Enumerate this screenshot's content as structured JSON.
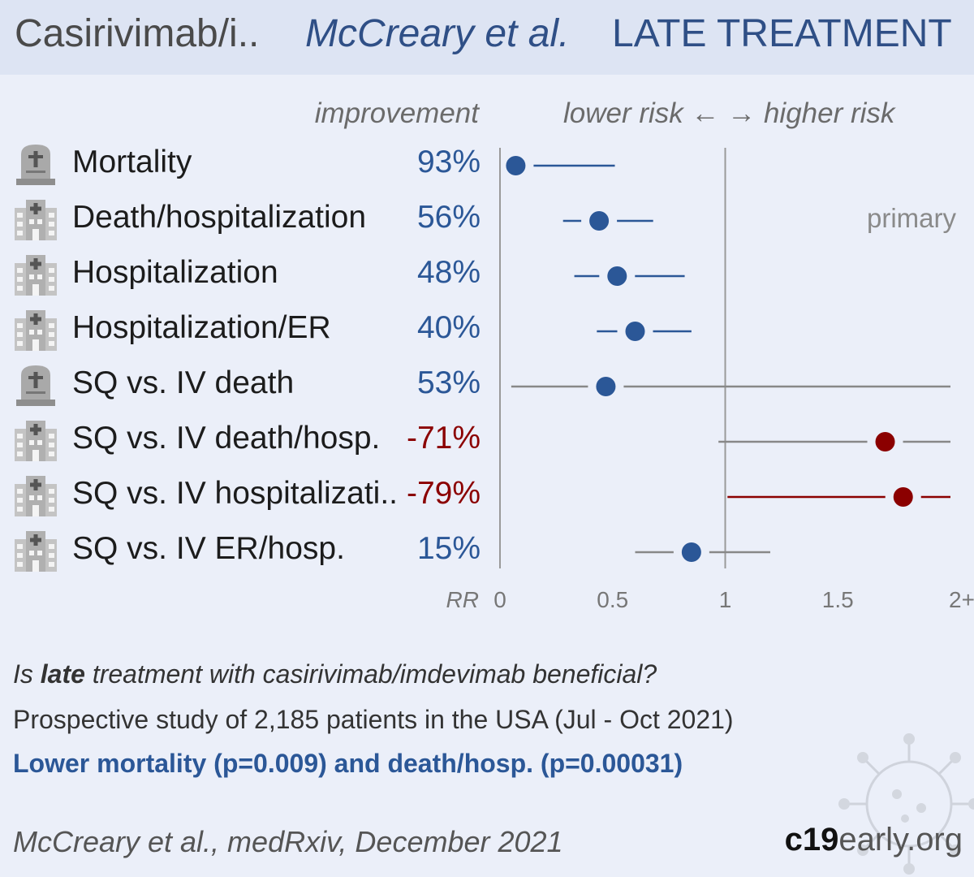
{
  "header": {
    "drug": "Casirivimab/i..",
    "authors": "McCreary et al.",
    "stage": "LATE TREATMENT"
  },
  "columns": {
    "improvement": "improvement",
    "risk_direction": "lower risk ← → higher risk"
  },
  "primary_label": "primary",
  "chart_data": {
    "type": "scatter",
    "subtype": "forest-plot",
    "xlabel": "RR",
    "xlim": [
      0,
      2
    ],
    "x_ticks": [
      "0",
      "0.5",
      "1",
      "1.5",
      "2+"
    ],
    "reference_line": 1,
    "rows": [
      {
        "label": "Mortality",
        "improvement": "93%",
        "rr": 0.07,
        "ci": [
          0.0,
          0.51
        ],
        "icon": "tombstone-icon",
        "color": "#2b5797",
        "line_color": "#2b5797",
        "primary": false
      },
      {
        "label": "Death/hospitalization",
        "improvement": "56%",
        "rr": 0.44,
        "ci": [
          0.28,
          0.68
        ],
        "icon": "hospital-icon",
        "color": "#2b5797",
        "line_color": "#2b5797",
        "primary": true
      },
      {
        "label": "Hospitalization",
        "improvement": "48%",
        "rr": 0.52,
        "ci": [
          0.33,
          0.82
        ],
        "icon": "hospital-icon",
        "color": "#2b5797",
        "line_color": "#2b5797",
        "primary": false
      },
      {
        "label": "Hospitalization/ER",
        "improvement": "40%",
        "rr": 0.6,
        "ci": [
          0.43,
          0.85
        ],
        "icon": "hospital-icon",
        "color": "#2b5797",
        "line_color": "#2b5797",
        "primary": false
      },
      {
        "label": "SQ vs. IV death",
        "improvement": "53%",
        "rr": 0.47,
        "ci": [
          0.05,
          2.0
        ],
        "icon": "tombstone-icon",
        "color": "#2b5797",
        "line_color": "#888888",
        "primary": false
      },
      {
        "label": "SQ vs. IV death/hosp.",
        "improvement": "-71%",
        "rr": 1.71,
        "ci": [
          0.97,
          2.0
        ],
        "icon": "hospital-icon",
        "color": "#8b0000",
        "line_color": "#888888",
        "primary": false
      },
      {
        "label": "SQ vs. IV hospitalizati..",
        "improvement": "-79%",
        "rr": 1.79,
        "ci": [
          1.01,
          2.0
        ],
        "icon": "hospital-icon",
        "color": "#8b0000",
        "line_color": "#8b0000",
        "primary": false
      },
      {
        "label": "SQ vs. IV ER/hosp.",
        "improvement": "15%",
        "rr": 0.85,
        "ci": [
          0.6,
          1.2
        ],
        "icon": "hospital-icon",
        "color": "#2b5797",
        "line_color": "#888888",
        "primary": false
      }
    ]
  },
  "summary": {
    "question_pre": "Is ",
    "question_bold": "late",
    "question_post": " treatment with casirivimab/imdevimab beneficial?",
    "study": "Prospective study of 2,185 patients in the USA (Jul - Oct 2021)",
    "result": "Lower mortality (p=0.009) and death/hosp. (p=0.00031)"
  },
  "footer": {
    "citation": "McCreary et al., medRxiv, December 2021",
    "brand_bold": "c19",
    "brand_rest": "early.org"
  }
}
